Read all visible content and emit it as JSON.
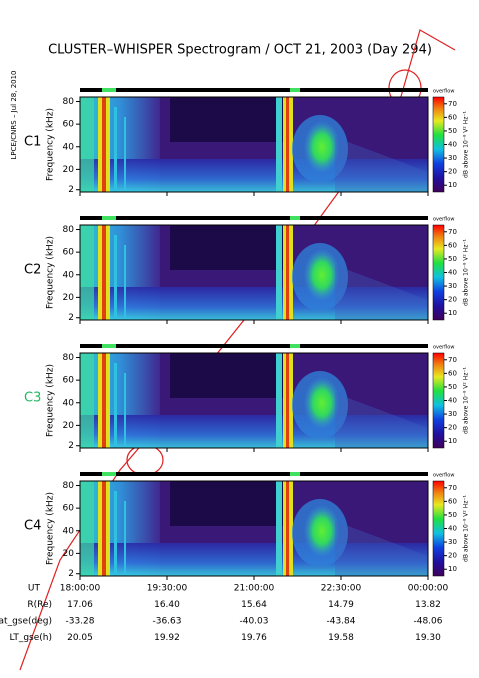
{
  "title": "CLUSTER–WHISPER Spectrogram / OCT 21, 2003 (Day 294)",
  "credit": "LPCE/CNRS – Jul 28, 2010",
  "chart_data": [
    {
      "type": "spectrogram",
      "label": "C1",
      "label_color": "#000000",
      "ylabel": "Frequency (kHz)",
      "ylim": [
        0,
        84
      ],
      "yticks": [
        2,
        20,
        40,
        60,
        80
      ],
      "colorbar": {
        "label": "dB above 10⁻⁸ V² Hz⁻¹",
        "overflow_label": "overflow",
        "clim": [
          5,
          75
        ],
        "ticks": [
          10,
          20,
          30,
          40,
          50,
          60,
          70
        ]
      }
    },
    {
      "type": "spectrogram",
      "label": "C2",
      "label_color": "#000000",
      "ylabel": "Frequency (kHz)",
      "ylim": [
        0,
        84
      ],
      "yticks": [
        2,
        20,
        40,
        60,
        80
      ],
      "colorbar": {
        "label": "dB above 10⁻⁸ V² Hz⁻¹",
        "overflow_label": "overflow",
        "clim": [
          5,
          75
        ],
        "ticks": [
          10,
          20,
          30,
          40,
          50,
          60,
          70
        ]
      }
    },
    {
      "type": "spectrogram",
      "label": "C3",
      "label_color": "#20b860",
      "ylabel": "Frequency (kHz)",
      "ylim": [
        0,
        84
      ],
      "yticks": [
        2,
        20,
        40,
        60,
        80
      ],
      "colorbar": {
        "label": "dB above 10⁻⁸ V² Hz⁻¹",
        "overflow_label": "overflow",
        "clim": [
          5,
          75
        ],
        "ticks": [
          10,
          20,
          30,
          40,
          50,
          60,
          70
        ]
      }
    },
    {
      "type": "spectrogram",
      "label": "C4",
      "label_color": "#000000",
      "ylabel": "Frequency (kHz)",
      "ylim": [
        0,
        84
      ],
      "yticks": [
        2,
        20,
        40,
        60,
        80
      ],
      "colorbar": {
        "label": "dB above 10⁻⁸ V² Hz⁻¹",
        "overflow_label": "overflow",
        "clim": [
          5,
          75
        ],
        "ticks": [
          10,
          20,
          30,
          40,
          50,
          60,
          70
        ]
      }
    }
  ],
  "time_axis": {
    "label": "UT",
    "xlim": [
      18,
      24
    ],
    "xticks": [
      {
        "value": 18,
        "label": "18:00:00"
      },
      {
        "value": 19.5,
        "label": "19:30:00"
      },
      {
        "value": 21,
        "label": "21:00:00"
      },
      {
        "value": 22.5,
        "label": "22:30:00"
      },
      {
        "value": 24,
        "label": "00:00:00"
      }
    ]
  },
  "ephemeris": [
    {
      "name": "R(Re)",
      "cells": [
        "17.06",
        "16.40",
        "15.64",
        "14.79",
        "13.82"
      ]
    },
    {
      "name": "Lat_gse(deg)",
      "cells": [
        "-33.28",
        "-36.63",
        "-40.03",
        "-43.84",
        "-48.06"
      ]
    },
    {
      "name": "LT_gse(h)",
      "cells": [
        "20.05",
        "19.92",
        "19.76",
        "19.58",
        "19.30"
      ]
    }
  ]
}
